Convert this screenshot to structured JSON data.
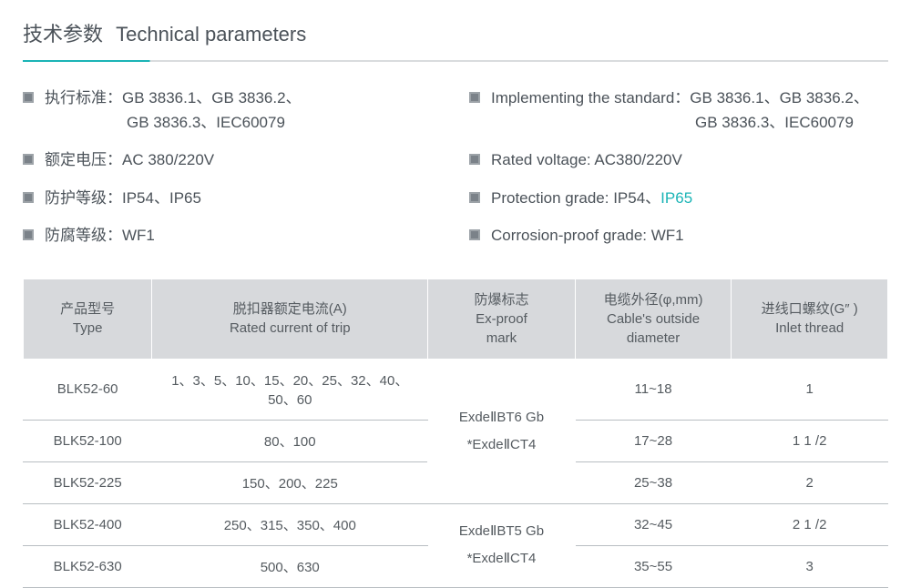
{
  "title": {
    "cn": "技术参数",
    "en": "Technical parameters"
  },
  "left": [
    {
      "text": "执行标准：GB 3836.1、GB 3836.2、<br><span style='padding-left:90px'>GB 3836.3、IEC60079</span>"
    },
    {
      "text": "额定电压：AC 380/220V"
    },
    {
      "text": "防护等级：IP54、IP65"
    },
    {
      "text": "防腐等级：WF1"
    }
  ],
  "right": [
    {
      "text": "Implementing the standard：GB 3836.1、GB 3836.2、<br><span style='padding-left:224px'>GB 3836.3、IEC60079</span>"
    },
    {
      "text": "Rated voltage: AC380/220V"
    },
    {
      "text": "Protection grade: IP54、<span class='link-teal'>IP65</span>"
    },
    {
      "text": "Corrosion-proof grade: WF1"
    }
  ],
  "table": {
    "headers": [
      "产品型号<br>Type",
      "脱扣器额定电流(A)<br>Rated current of trip",
      "防爆标志<br>Ex-proof<br>mark",
      "电缆外径(φ,mm)<br>Cable's outside<br>diameter",
      "进线口螺纹(G″ )<br>Inlet thread"
    ],
    "colwidths": [
      "140px",
      "300px",
      "160px",
      "170px",
      "170px"
    ],
    "rows": [
      {
        "type": "BLK52-60",
        "current": "1、3、5、10、15、20、25、32、40、50、60",
        "diam": "11~18",
        "inlet": "1"
      },
      {
        "type": "BLK52-100",
        "current": "80、100",
        "diam": "17~28",
        "inlet": "1  1 /2"
      },
      {
        "type": "BLK52-225",
        "current": "150、200、225",
        "diam": "25~38",
        "inlet": "2"
      },
      {
        "type": "BLK52-400",
        "current": "250、315、350、400",
        "diam": "32~45",
        "inlet": "2  1 /2"
      },
      {
        "type": "BLK52-630",
        "current": "500、630",
        "diam": "35~55",
        "inlet": "3"
      }
    ],
    "exproof": {
      "group1": "ExdeⅡBT6 Gb<br>*ExdeⅡCT4",
      "group2": "ExdeⅡBT5 Gb<br>*ExdeⅡCT4"
    }
  }
}
